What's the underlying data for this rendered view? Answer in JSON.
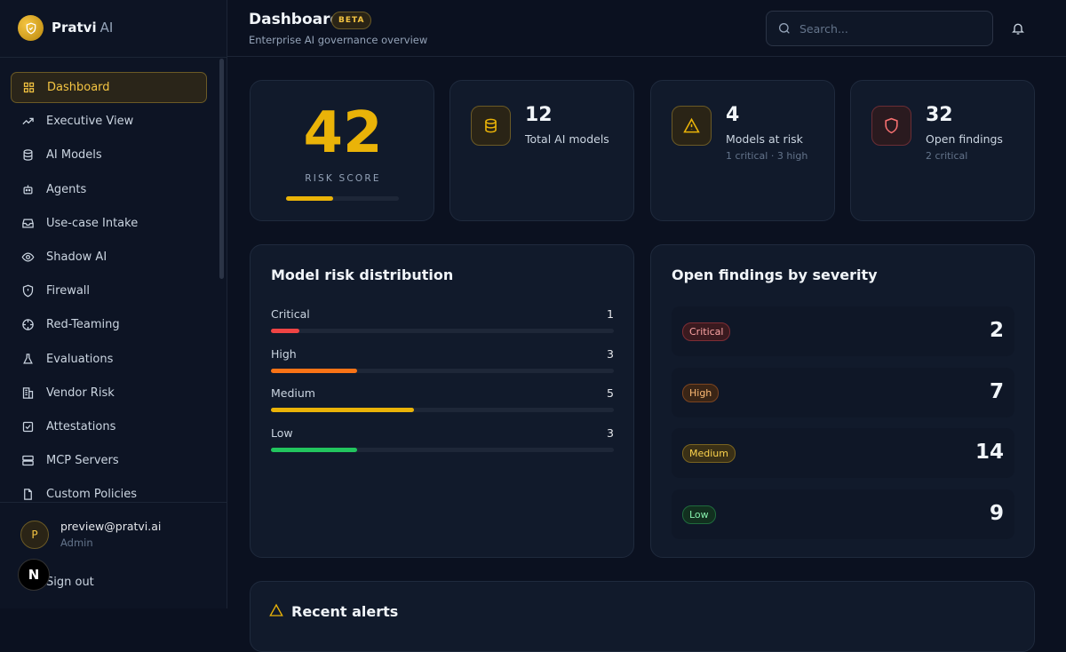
{
  "sidebar": {
    "brand": {
      "name": "Pratvi",
      "suffix": "AI"
    },
    "nav": [
      "Dashboard",
      "Executive View",
      "AI Models",
      "Agents",
      "Use-case Intake",
      "Shadow AI",
      "Firewall",
      "Red-Teaming",
      "Evaluations",
      "Vendor Risk",
      "Attestations",
      "MCP Servers",
      "Custom Policies"
    ],
    "user": {
      "initial": "P",
      "email": "preview@pratvi.ai",
      "role": "Admin"
    },
    "sign_out": "Sign out",
    "dev_badge": "N"
  },
  "header": {
    "title": "Dashboard",
    "badge": "BETA",
    "subtitle": "Enterprise AI governance overview",
    "search_placeholder": "Search..."
  },
  "risk_score": {
    "value": 42,
    "label": "RISK SCORE"
  },
  "stats": [
    {
      "value": 12,
      "label": "Total AI models"
    },
    {
      "value": 4,
      "label": "Models at risk",
      "detail": "1 critical · 3 high"
    },
    {
      "value": 32,
      "label": "Open findings",
      "detail": "2 critical"
    }
  ],
  "distribution": {
    "title": "Model risk distribution",
    "rows": [
      {
        "label": "Critical",
        "value": 1,
        "color": "#ef4444"
      },
      {
        "label": "High",
        "value": 3,
        "color": "#f97316"
      },
      {
        "label": "Medium",
        "value": 5,
        "color": "#eab308"
      },
      {
        "label": "Low",
        "value": 3,
        "color": "#22c55e"
      }
    ]
  },
  "findings": {
    "title": "Open findings by severity",
    "rows": [
      {
        "label": "Critical",
        "value": 2,
        "color": "#fca5a5"
      },
      {
        "label": "High",
        "value": 7,
        "color": "#fdba74"
      },
      {
        "label": "Medium",
        "value": 14,
        "color": "#fcd34d"
      },
      {
        "label": "Low",
        "value": 9,
        "color": "#86efac"
      }
    ]
  },
  "alerts": {
    "title": "Recent alerts"
  }
}
